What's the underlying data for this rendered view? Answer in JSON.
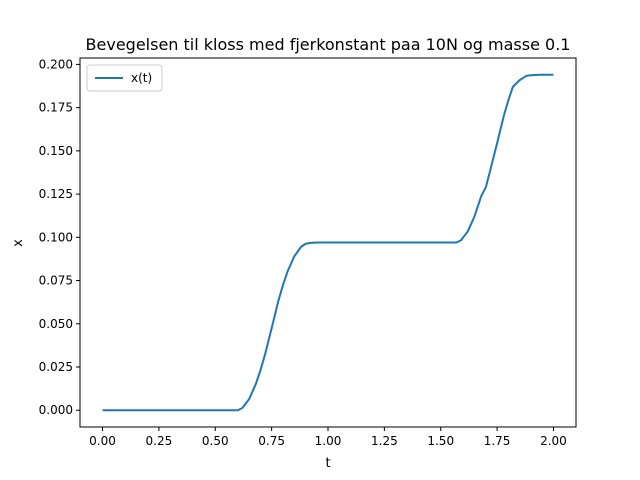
{
  "chart_data": {
    "type": "line",
    "title": "Bevegelsen til kloss med fjerkonstant paa 10N og masse 0.1",
    "xlabel": "t",
    "ylabel": "x",
    "xlim": [
      -0.1,
      2.1
    ],
    "ylim": [
      -0.0097,
      0.2037
    ],
    "xticks": [
      "0.00",
      "0.25",
      "0.50",
      "0.75",
      "1.00",
      "1.25",
      "1.50",
      "1.75",
      "2.00"
    ],
    "yticks": [
      "0.000",
      "0.025",
      "0.050",
      "0.075",
      "0.100",
      "0.125",
      "0.150",
      "0.175",
      "0.200"
    ],
    "grid": false,
    "legend_position": "top-left",
    "series": [
      {
        "name": "x(t)",
        "color": "#1f77b4",
        "x": [
          0.0,
          0.1,
          0.2,
          0.3,
          0.4,
          0.5,
          0.6,
          0.62,
          0.65,
          0.68,
          0.7,
          0.72,
          0.75,
          0.78,
          0.8,
          0.82,
          0.85,
          0.88,
          0.9,
          0.92,
          0.94,
          0.96,
          1.0,
          1.1,
          1.2,
          1.3,
          1.4,
          1.5,
          1.57,
          1.59,
          1.62,
          1.65,
          1.68,
          1.7,
          1.72,
          1.75,
          1.78,
          1.8,
          1.82,
          1.85,
          1.88,
          1.9,
          1.92,
          1.94,
          1.96,
          2.0
        ],
        "y": [
          0.0,
          0.0,
          0.0,
          0.0,
          0.0,
          0.0,
          0.0,
          0.0013,
          0.0064,
          0.0152,
          0.0229,
          0.0319,
          0.0474,
          0.0633,
          0.0723,
          0.08,
          0.0889,
          0.0944,
          0.0962,
          0.0967,
          0.0969,
          0.097,
          0.097,
          0.097,
          0.097,
          0.097,
          0.097,
          0.097,
          0.097,
          0.0983,
          0.1034,
          0.1122,
          0.1239,
          0.1289,
          0.1389,
          0.1544,
          0.1703,
          0.1793,
          0.187,
          0.1909,
          0.1934,
          0.1937,
          0.1939,
          0.194,
          0.194,
          0.194
        ]
      }
    ]
  }
}
